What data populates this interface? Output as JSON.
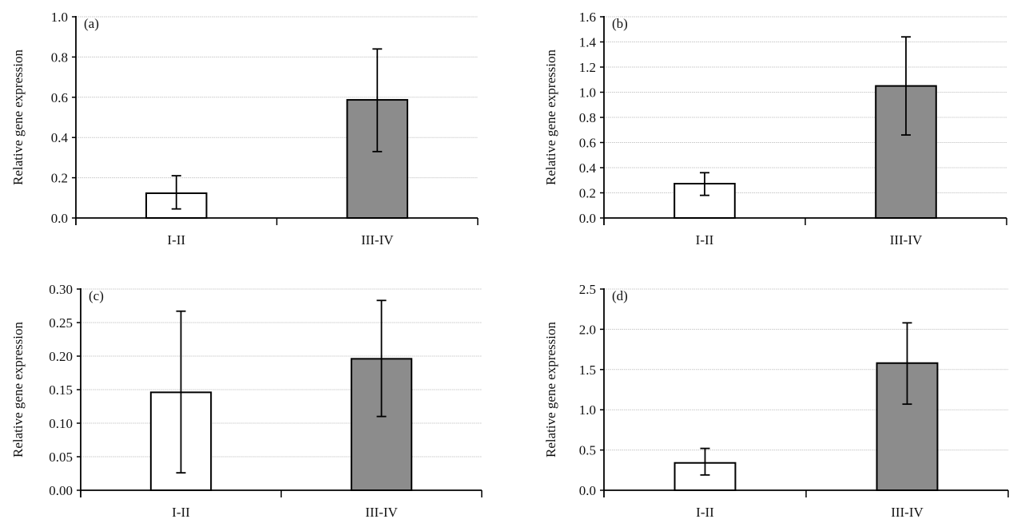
{
  "chart_data": [
    {
      "type": "bar",
      "panel_label": "(a)",
      "ylabel": "Relative gene expression",
      "categories": [
        "I-II",
        "III-IV"
      ],
      "values": [
        0.123,
        0.587
      ],
      "error_upper": [
        0.21,
        0.84
      ],
      "error_lower": [
        0.045,
        0.33
      ],
      "ylim": [
        0,
        1.0
      ],
      "yticks": [
        "0.0",
        "0.2",
        "0.4",
        "0.6",
        "0.8",
        "1.0"
      ],
      "bar_colors": [
        "#ffffff",
        "#8c8c8c"
      ],
      "grid": true
    },
    {
      "type": "bar",
      "panel_label": "(b)",
      "ylabel": "Relative gene expression",
      "categories": [
        "I-II",
        "III-IV"
      ],
      "values": [
        0.273,
        1.05
      ],
      "error_upper": [
        0.36,
        1.44
      ],
      "error_lower": [
        0.18,
        0.66
      ],
      "ylim": [
        0,
        1.6
      ],
      "yticks": [
        "0.0",
        "0.2",
        "0.4",
        "0.6",
        "0.8",
        "1.0",
        "1.2",
        "1.4",
        "1.6"
      ],
      "bar_colors": [
        "#ffffff",
        "#8c8c8c"
      ],
      "grid": true
    },
    {
      "type": "bar",
      "panel_label": "(c)",
      "ylabel": "Relative gene expression",
      "categories": [
        "I-II",
        "III-IV"
      ],
      "values": [
        0.146,
        0.196
      ],
      "error_upper": [
        0.267,
        0.283
      ],
      "error_lower": [
        0.026,
        0.11
      ],
      "ylim": [
        0,
        0.3
      ],
      "yticks": [
        "0.00",
        "0.05",
        "0.10",
        "0.15",
        "0.20",
        "0.25",
        "0.30"
      ],
      "bar_colors": [
        "#ffffff",
        "#8c8c8c"
      ],
      "grid": true
    },
    {
      "type": "bar",
      "panel_label": "(d)",
      "ylabel": "Relative gene expression",
      "categories": [
        "I-II",
        "III-IV"
      ],
      "values": [
        0.34,
        1.58
      ],
      "error_upper": [
        0.52,
        2.08
      ],
      "error_lower": [
        0.19,
        1.07
      ],
      "ylim": [
        0,
        2.5
      ],
      "yticks": [
        "0.0",
        "0.5",
        "1.0",
        "1.5",
        "2.0",
        "2.5"
      ],
      "bar_colors": [
        "#ffffff",
        "#8c8c8c"
      ],
      "grid": true
    }
  ]
}
